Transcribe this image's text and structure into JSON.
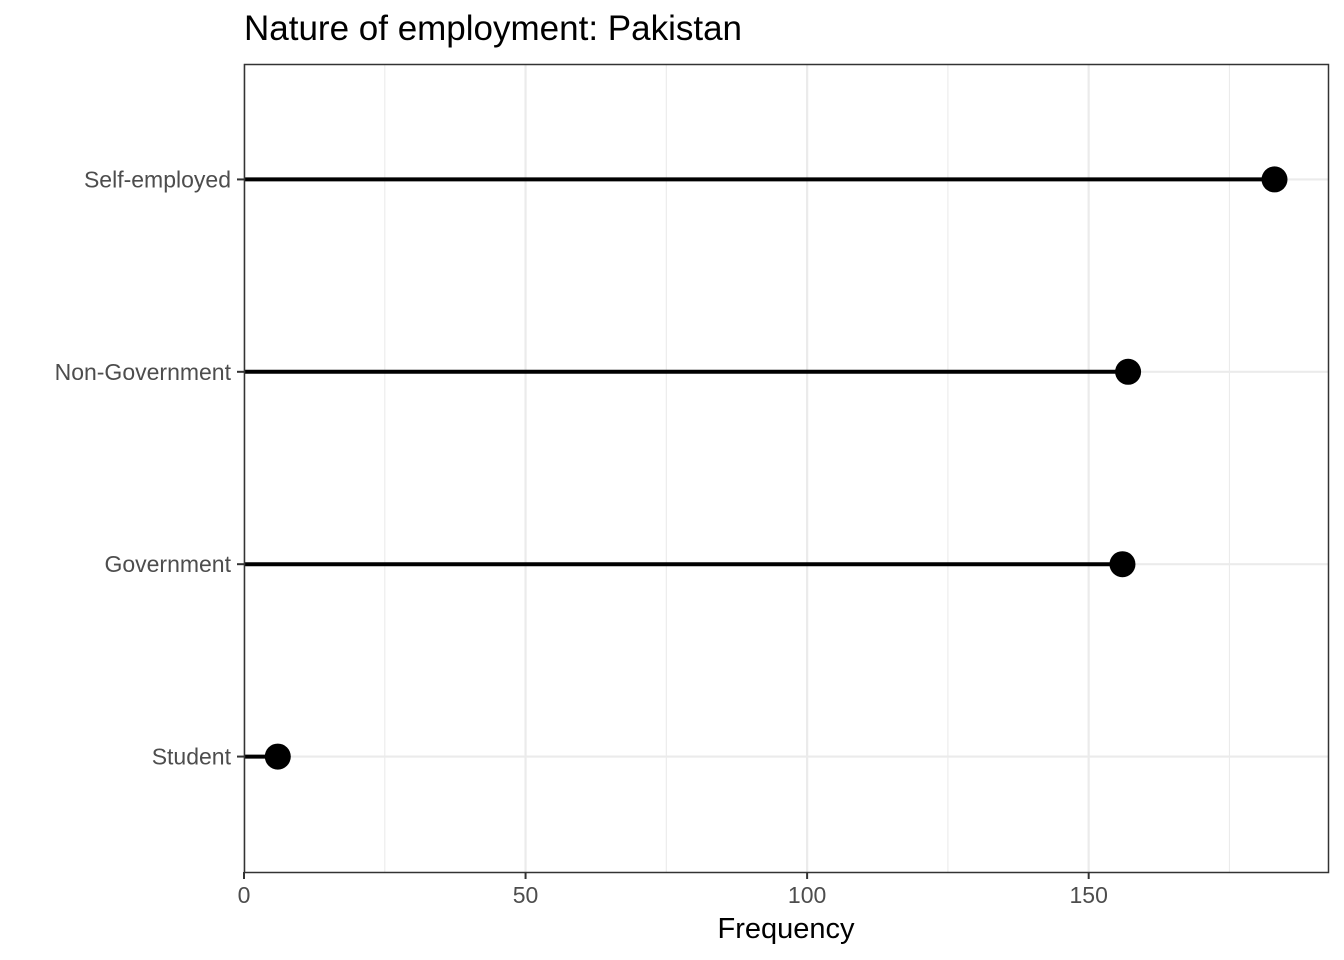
{
  "chart_data": {
    "type": "lollipop",
    "title": "Nature of employment: Pakistan",
    "xlabel": "Frequency",
    "ylabel": "",
    "orientation": "horizontal",
    "categories": [
      "Student",
      "Government",
      "Non-Government",
      "Self-employed"
    ],
    "values": [
      6,
      156,
      157,
      183
    ],
    "xlim": [
      0,
      192.5
    ],
    "x_ticks": [
      0,
      50,
      100,
      150
    ],
    "x_tick_labels": [
      "0",
      "50",
      "100",
      "150"
    ],
    "grid": true,
    "legend": "none",
    "colors": {
      "marks": "#000000",
      "grid": "#ebebeb",
      "border": "#333333",
      "tick_text": "#4d4d4d"
    }
  }
}
